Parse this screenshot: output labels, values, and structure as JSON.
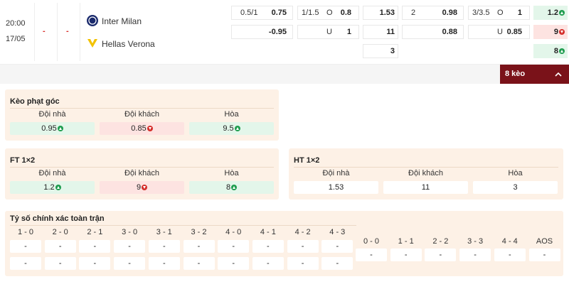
{
  "match": {
    "time": "20:00",
    "date": "17/05",
    "score_home": "-",
    "score_away": "-",
    "home": "Inter Milan",
    "away": "Hellas Verona"
  },
  "top_odds": {
    "ah": {
      "line": "0.5/1",
      "home": "0.75",
      "away": "-0.95"
    },
    "ou": {
      "line": "1/1.5",
      "over_label": "O",
      "over": "0.8",
      "under_label": "U",
      "under": "1"
    },
    "x12_ht": [
      "1.53",
      "11",
      "3"
    ],
    "ah_ht": {
      "line": "2",
      "home": "0.98",
      "away": "0.88"
    },
    "ou_ht": {
      "line": "3/3.5",
      "over_label": "O",
      "over": "1",
      "under_label": "U",
      "under": "0.85"
    },
    "x12_ft": [
      {
        "value": "1.2",
        "trend": "up"
      },
      {
        "value": "9",
        "trend": "down"
      },
      {
        "value": "8",
        "trend": "up"
      }
    ]
  },
  "more_button": "8 kèo",
  "panels": [
    {
      "title": "Kèo phạt góc",
      "headers": [
        "Đội nhà",
        "Đội khách",
        "Hòa"
      ],
      "cells": [
        {
          "value": "0.95",
          "trend": "up"
        },
        {
          "value": "0.85",
          "trend": "down"
        },
        {
          "value": "9.5",
          "trend": "up"
        }
      ]
    },
    {
      "title": "FT 1×2",
      "headers": [
        "Đội nhà",
        "Đội khách",
        "Hòa"
      ],
      "cells": [
        {
          "value": "1.2",
          "trend": "up"
        },
        {
          "value": "9",
          "trend": "down"
        },
        {
          "value": "8",
          "trend": "up"
        }
      ]
    },
    {
      "title": "HT 1×2",
      "headers": [
        "Đội nhà",
        "Đội khách",
        "Hòa"
      ],
      "cells": [
        {
          "value": "1.53"
        },
        {
          "value": "11"
        },
        {
          "value": "3"
        }
      ]
    }
  ],
  "correct_score": {
    "title": "Tỷ số chính xác toàn trận",
    "left": [
      {
        "score": "1 - 0",
        "odds": [
          "-",
          "-"
        ]
      },
      {
        "score": "2 - 0",
        "odds": [
          "-",
          "-"
        ]
      },
      {
        "score": "2 - 1",
        "odds": [
          "-",
          "-"
        ]
      },
      {
        "score": "3 - 0",
        "odds": [
          "-",
          "-"
        ]
      },
      {
        "score": "3 - 1",
        "odds": [
          "-",
          "-"
        ]
      },
      {
        "score": "3 - 2",
        "odds": [
          "-",
          "-"
        ]
      },
      {
        "score": "4 - 0",
        "odds": [
          "-",
          "-"
        ]
      },
      {
        "score": "4 - 1",
        "odds": [
          "-",
          "-"
        ]
      },
      {
        "score": "4 - 2",
        "odds": [
          "-",
          "-"
        ]
      },
      {
        "score": "4 - 3",
        "odds": [
          "-",
          "-"
        ]
      }
    ],
    "right": [
      {
        "score": "0 - 0",
        "odds": [
          "-"
        ]
      },
      {
        "score": "1 - 1",
        "odds": [
          "-"
        ]
      },
      {
        "score": "2 - 2",
        "odds": [
          "-"
        ]
      },
      {
        "score": "3 - 3",
        "odds": [
          "-"
        ]
      },
      {
        "score": "4 - 4",
        "odds": [
          "-"
        ]
      },
      {
        "score": "AOS",
        "odds": [
          "-"
        ]
      }
    ]
  }
}
